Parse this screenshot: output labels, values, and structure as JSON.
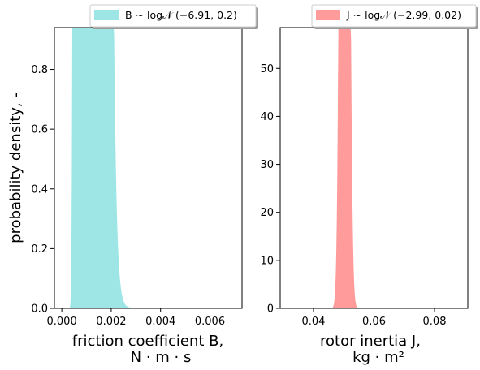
{
  "chart_data": [
    {
      "type": "area",
      "distribution": "lognormal",
      "mu": -6.91,
      "sigma": 0.2,
      "color": "#9ee6e6",
      "legend": {
        "label": "B ~ log𝒩 (−6.91, 0.2)",
        "placement": "top"
      },
      "xlabel": "friction coefficient B,",
      "xlabel_units": "N · m · s",
      "ylabel": "probability density, -",
      "xlim": [
        -0.0003,
        0.0073
      ],
      "ylim": [
        0,
        0.94
      ],
      "x_range_plotted": [
        0.0003,
        0.0073
      ],
      "xticks": [
        0.0,
        0.002,
        0.004,
        0.006
      ],
      "xtick_labels": [
        "0.000",
        "0.002",
        "0.004",
        "0.006"
      ],
      "yticks": [
        0.0,
        0.2,
        0.4,
        0.6,
        0.8
      ],
      "ytick_labels": [
        "0.0",
        "0.2",
        "0.4",
        "0.6",
        "0.8"
      ],
      "peak": {
        "x": 0.00096,
        "y": 0.89
      },
      "grid": false
    },
    {
      "type": "area",
      "distribution": "lognormal",
      "mu": -2.99,
      "sigma": 0.02,
      "color": "#ff9b9b",
      "legend": {
        "label": "J ~ log𝒩 (−2.99, 0.02)",
        "placement": "top"
      },
      "xlabel": "rotor inertia J,",
      "xlabel_units": "kg · m²",
      "ylabel": "",
      "xlim": [
        0.029,
        0.091
      ],
      "ylim": [
        0,
        58.5
      ],
      "x_range_plotted": [
        0.032,
        0.088
      ],
      "xticks": [
        0.04,
        0.06,
        0.08
      ],
      "xtick_labels": [
        "0.04",
        "0.06",
        "0.08"
      ],
      "yticks": [
        0,
        10,
        20,
        30,
        40,
        50
      ],
      "ytick_labels": [
        "0",
        "10",
        "20",
        "30",
        "40",
        "50"
      ],
      "peak": {
        "x": 0.0502,
        "y": 55.5
      },
      "grid": false
    }
  ]
}
